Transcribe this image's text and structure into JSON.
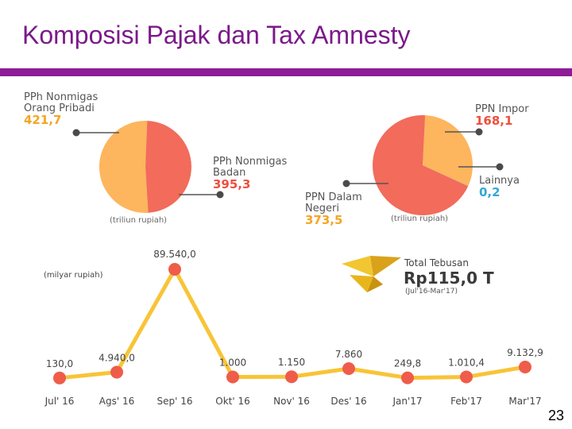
{
  "slide": {
    "title": "Komposisi Pajak dan Tax Amnesty",
    "page_number": "23"
  },
  "colors": {
    "title": "#7b1a8a",
    "title_bar": "#8e1c97",
    "pie_orange": "#fdb55e",
    "pie_red": "#f26b5b",
    "value_orange": "#f5a524",
    "value_red": "#ee4f3d",
    "value_blue": "#35a6d6",
    "line": "#f8c437",
    "marker": "#ef5c4a",
    "logo_gold": "#e8b61c"
  },
  "icons": {
    "logo": "gold-bird-logo-icon"
  },
  "chart_data": [
    {
      "type": "pie",
      "unit_note": "(triliun rupiah)",
      "slices": [
        {
          "label_lines": [
            "PPh Nonmigas",
            "Orang Pribadi"
          ],
          "value": 421.7,
          "value_text": "421,7",
          "color": "#fdb55e",
          "value_color": "#f5a524"
        },
        {
          "label_lines": [
            "PPh Nonmigas",
            "Badan"
          ],
          "value": 395.3,
          "value_text": "395,3",
          "color": "#f26b5b",
          "value_color": "#ee4f3d"
        }
      ]
    },
    {
      "type": "pie",
      "unit_note": "(triliun rupiah)",
      "slices": [
        {
          "label_lines": [
            "PPN Impor"
          ],
          "value": 168.1,
          "value_text": "168,1",
          "color": "#fdb55e",
          "value_color": "#ee4f3d"
        },
        {
          "label_lines": [
            "Lainnya"
          ],
          "value": 0.2,
          "value_text": "0,2",
          "color": "#35a6d6",
          "value_color": "#35a6d6"
        },
        {
          "label_lines": [
            "PPN Dalam",
            "Negeri"
          ],
          "value": 373.5,
          "value_text": "373,5",
          "color": "#f26b5b",
          "value_color": "#f5a524"
        }
      ]
    },
    {
      "type": "line",
      "unit_note": "(milyar rupiah)",
      "categories": [
        "Jul' 16",
        "Ags' 16",
        "Sep' 16",
        "Okt' 16",
        "Nov' 16",
        "Des' 16",
        "Jan'17",
        "Feb'17",
        "Mar'17"
      ],
      "values": [
        130.0,
        4940.0,
        89540.0,
        1000,
        1150,
        7860,
        249.8,
        1010.4,
        9132.9
      ],
      "value_labels": [
        "130,0",
        "4.940,0",
        "89.540,0",
        "1.000",
        "1.150",
        "7.860",
        "249,8",
        "1.010,4",
        "9.132,9"
      ],
      "ylim": [
        0,
        89540.0
      ],
      "grid": false,
      "summary": {
        "label": "Total Tebusan",
        "value": "Rp115,0 T",
        "period": "(Jul'16-Mar'17)"
      }
    }
  ]
}
